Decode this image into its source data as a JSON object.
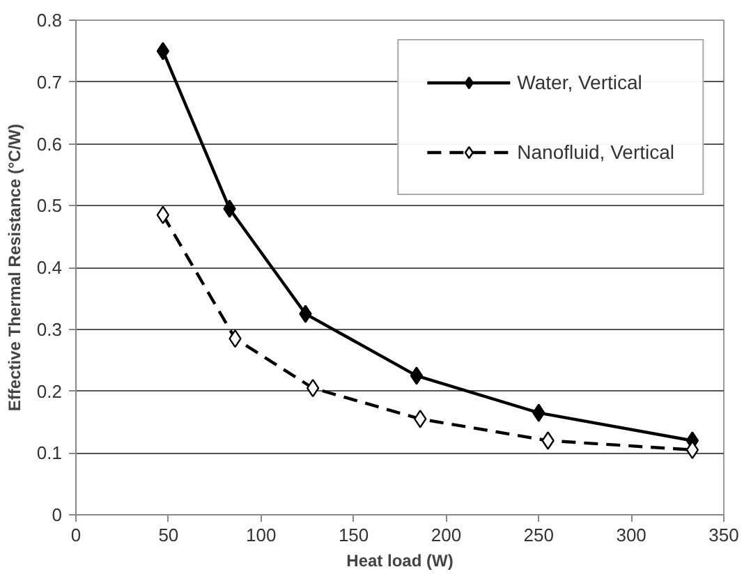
{
  "chart_data": {
    "type": "line",
    "xlabel": "Heat load (W)",
    "ylabel": "Effective Thermal Resistance (°C/W)",
    "xlim": [
      0,
      350
    ],
    "xticks": [
      0,
      50,
      100,
      150,
      200,
      250,
      300,
      350
    ],
    "ylim": [
      0,
      0.8
    ],
    "yticks": [
      0,
      0.1,
      0.2,
      0.3,
      0.4,
      0.5,
      0.6,
      0.7,
      0.8
    ],
    "grid": "y",
    "legend": "top right",
    "marker": "diamond",
    "series": [
      {
        "name": "Water, Vertical",
        "color": "#000000",
        "line_style": "solid",
        "x": [
          47,
          83,
          124,
          184,
          250,
          333
        ],
        "values": [
          0.75,
          0.495,
          0.325,
          0.225,
          0.165,
          0.12
        ]
      },
      {
        "name": "Nanofluid, Vertical",
        "color": "#000000",
        "line_style": "dashed",
        "x": [
          47,
          86,
          128,
          186,
          255,
          333
        ],
        "values": [
          0.485,
          0.285,
          0.205,
          0.155,
          0.12,
          0.105
        ]
      }
    ]
  }
}
